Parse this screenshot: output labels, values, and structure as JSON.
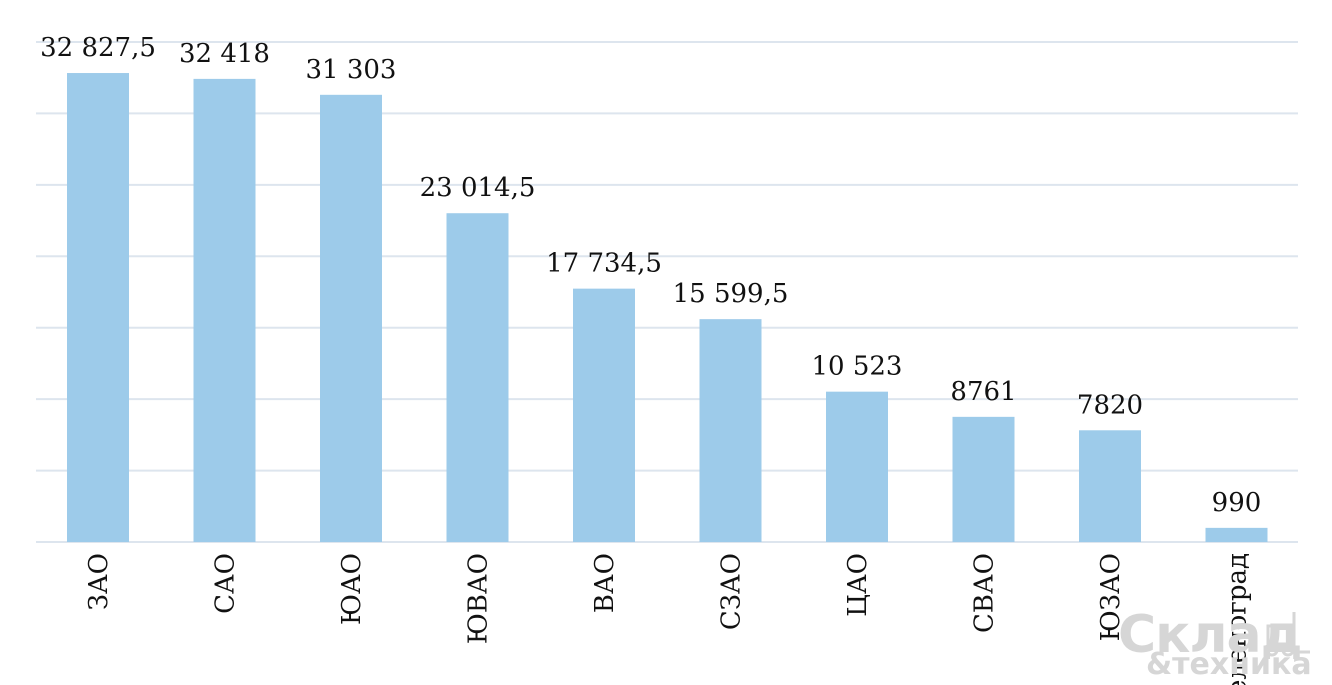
{
  "chart_data": {
    "type": "bar",
    "title": "",
    "xlabel": "",
    "ylabel": "",
    "categories": [
      "ЗАО",
      "САО",
      "ЮАО",
      "ЮВАО",
      "ВАО",
      "СЗАО",
      "ЦАО",
      "СВАО",
      "ЮЗАО",
      "Зеленоград"
    ],
    "values": [
      32827.5,
      32418,
      31303,
      23014.5,
      17734.5,
      15599.5,
      10523,
      8761,
      7820,
      990
    ],
    "value_labels": [
      "32 827,5",
      "32 418",
      "31 303",
      "23 014,5",
      "17 734,5",
      "15 599,5",
      "10 523",
      "8761",
      "7820",
      "990"
    ],
    "ylim": [
      0,
      35000
    ],
    "grid": true,
    "color": "#9dcbea"
  },
  "watermark": {
    "text_main": "Склад",
    "text_sub": "&техника",
    "color": "#d6d6d6",
    "icon": "forklift-icon"
  }
}
